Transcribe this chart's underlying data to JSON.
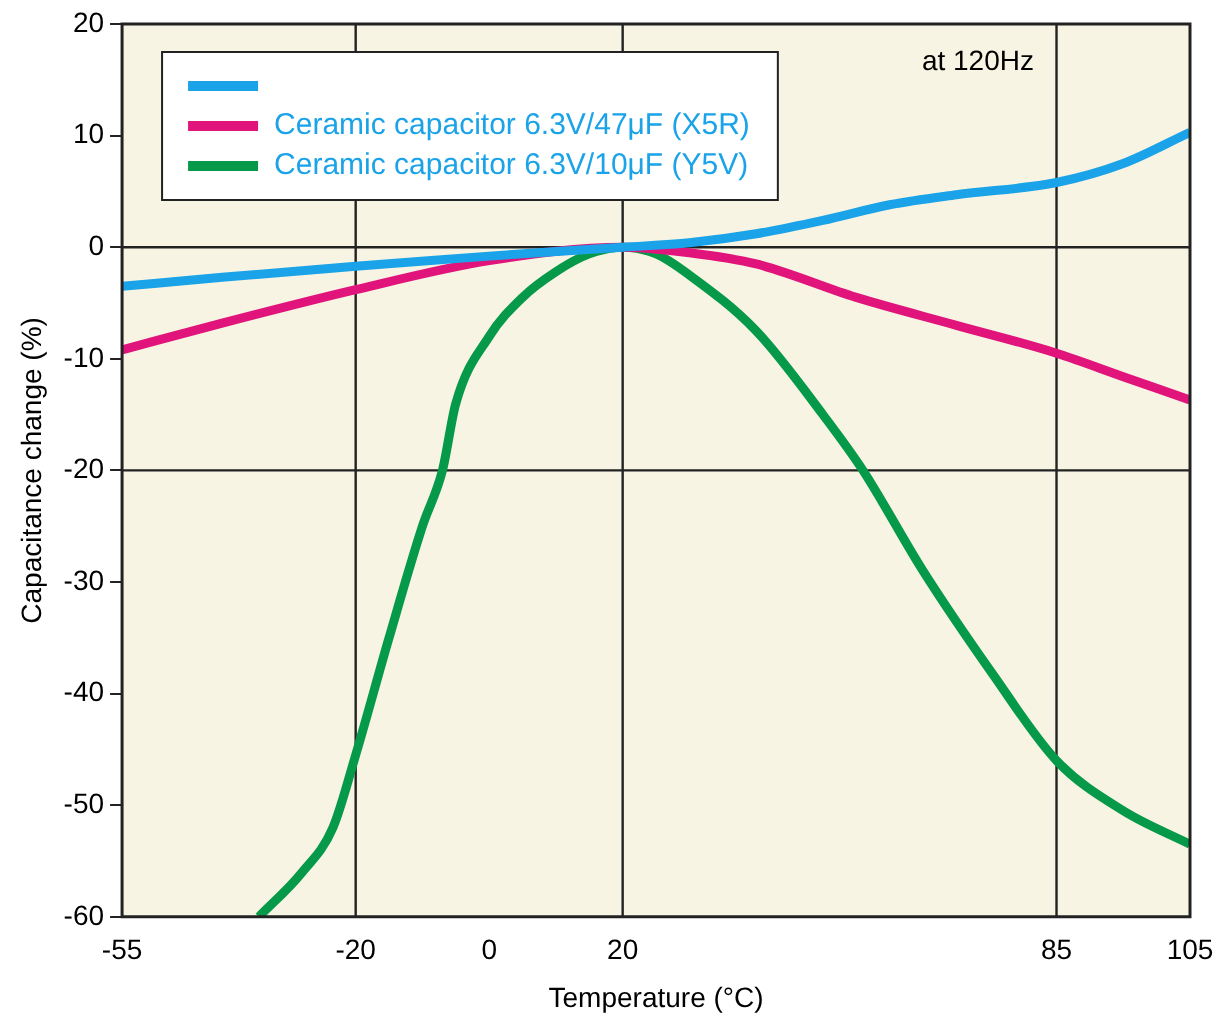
{
  "chart_data": {
    "type": "line",
    "xlabel": "Temperature (°C)",
    "ylabel": "Capacitance change (%)",
    "annotations": [
      "at 120Hz"
    ],
    "xlim": [
      -55,
      105
    ],
    "xticks": [
      -55,
      -20,
      0,
      20,
      85,
      105
    ],
    "ylim": [
      -60,
      20
    ],
    "yticks": [
      -60,
      -50,
      -40,
      -30,
      -20,
      -10,
      0,
      10,
      20
    ],
    "grid": false,
    "legend": "top left",
    "marker": "none",
    "line_style": "solid",
    "ref_lines": [
      {
        "axis": "x",
        "value": -20,
        "color": "#222222"
      },
      {
        "axis": "x",
        "value": 20,
        "color": "#222222"
      },
      {
        "axis": "x",
        "value": 85,
        "color": "#222222"
      },
      {
        "axis": "y",
        "value": 0,
        "color": "#222222"
      },
      {
        "axis": "y",
        "value": -20,
        "color": "#222222"
      }
    ],
    "series": [
      {
        "color": "#1aa3e8",
        "x": [
          -55,
          -40,
          -20,
          0,
          20,
          30,
          40,
          50,
          60,
          70,
          85,
          95,
          105
        ],
        "values": [
          -3.5,
          -2.7,
          -1.7,
          -0.8,
          0,
          0.4,
          1.2,
          2.4,
          3.8,
          4.7,
          5.8,
          7.5,
          10.3
        ]
      },
      {
        "name": "Ceramic capacitor 6.3V/47μF (X5R)",
        "color": "#e0147a",
        "x": [
          -55,
          -40,
          -20,
          0,
          20,
          30,
          40,
          55,
          70,
          85,
          95,
          105
        ],
        "values": [
          -9.2,
          -6.8,
          -3.8,
          -1.2,
          0,
          -0.5,
          -1.5,
          -4.5,
          -7,
          -9.5,
          -11.6,
          -13.7
        ]
      },
      {
        "name": "Ceramic capacitor 6.3V/10μF (Y5V)",
        "color": "#07994a",
        "x": [
          -34.5,
          -28,
          -23.4,
          -20,
          -15,
          -10,
          -7,
          -5,
          0,
          5,
          10,
          15,
          20,
          25,
          30,
          40,
          50,
          56,
          65,
          75.5,
          85,
          95,
          105
        ],
        "values": [
          -60,
          -56,
          -52,
          -45.5,
          -35,
          -25,
          -20,
          -14,
          -8,
          -4.5,
          -2.2,
          -0.6,
          0,
          -0.6,
          -2.5,
          -7.5,
          -15,
          -20,
          -29,
          -38.3,
          -46,
          -50.5,
          -53.5
        ]
      }
    ]
  }
}
